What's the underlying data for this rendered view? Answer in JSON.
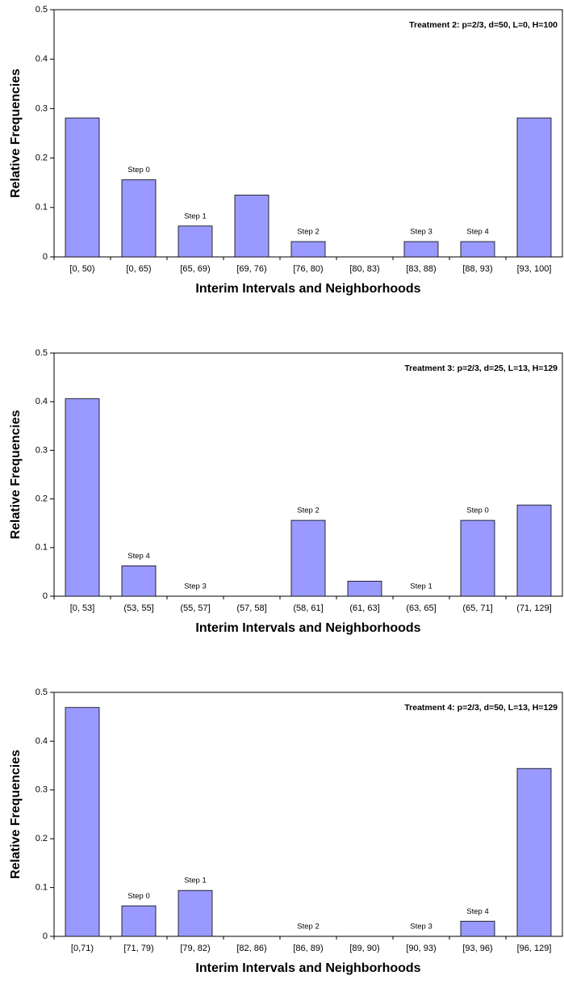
{
  "chart_data": [
    {
      "type": "bar",
      "title": "Treatment 2: p=2/3, d=50, L=0, H=100",
      "x_label": "Interim Intervals and Neighborhoods",
      "y_label": "Relative Frequencies",
      "categories": [
        "[0, 50)",
        "[0, 65)",
        "[65, 69)",
        "[69, 76)",
        "[76, 80)",
        "[80, 83)",
        "[83, 88)",
        "[88, 93)",
        "[93, 100]"
      ],
      "values": [
        0.281,
        0.156,
        0.0625,
        0.125,
        0.031,
        0,
        0.031,
        0.031,
        0.281
      ],
      "bar_labels": [
        null,
        "Step 0",
        "Step 1",
        null,
        "Step 2",
        null,
        "Step 3",
        "Step 4",
        null
      ],
      "color": "#9999ff",
      "ylim": [
        0,
        0.5
      ],
      "yticks": [
        0,
        0.1,
        0.2,
        0.3,
        0.4,
        0.5
      ]
    },
    {
      "type": "bar",
      "title": "Treatment 3: p=2/3, d=25, L=13, H=129",
      "x_label": "Interim Intervals and Neighborhoods",
      "y_label": "Relative Frequencies",
      "categories": [
        "[0, 53]",
        "(53, 55]",
        "(55, 57]",
        "(57, 58]",
        "(58, 61]",
        "(61, 63]",
        "(63, 65]",
        "(65, 71]",
        "(71, 129]"
      ],
      "values": [
        0.406,
        0.0625,
        0,
        0,
        0.156,
        0.031,
        0,
        0.156,
        0.1875
      ],
      "bar_labels": [
        null,
        "Step 4",
        "Step 3",
        null,
        "Step 2",
        null,
        "Step 1",
        "Step 0",
        null
      ],
      "color": "#9999ff",
      "ylim": [
        0,
        0.5
      ],
      "yticks": [
        0,
        0.1,
        0.2,
        0.3,
        0.4,
        0.5
      ]
    },
    {
      "type": "bar",
      "title": "Treatment 4: p=2/3, d=50, L=13, H=129",
      "x_label": "Interim Intervals and Neighborhoods",
      "y_label": "Relative Frequencies",
      "categories": [
        "[0,71)",
        "[71, 79)",
        "[79, 82)",
        "[82, 86)",
        "[86, 89)",
        "[89, 90)",
        "[90, 93)",
        "[93, 96)",
        "[96, 129]"
      ],
      "values": [
        0.469,
        0.0625,
        0.094,
        0,
        0,
        0,
        0,
        0.031,
        0.344
      ],
      "bar_labels": [
        null,
        "Step 0",
        "Step 1",
        null,
        "Step 2",
        null,
        "Step 3",
        "Step 4",
        null
      ],
      "color": "#9999ff",
      "ylim": [
        0,
        0.5
      ],
      "yticks": [
        0,
        0.1,
        0.2,
        0.3,
        0.4,
        0.5
      ]
    }
  ]
}
